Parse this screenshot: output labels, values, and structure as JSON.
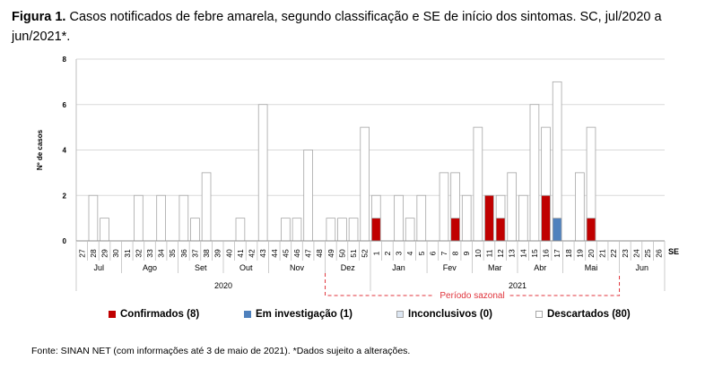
{
  "title": {
    "label": "Figura 1.",
    "text": "Casos notificados de febre amarela, segundo classificação e SE de início dos sintomas. SC, jul/2020 a jun/2021*."
  },
  "footer": {
    "source": "Fonte: SINAN NET (com informações até 3 de maio de 2021). *Dados sujeito a alterações."
  },
  "colors": {
    "confirmados": "#c00000",
    "investigacao": "#4f81bd",
    "inconclusivos": "#dce6f2",
    "descartados": "#ffffff",
    "bar_border": "#a6a6a6",
    "sazonal": "#e0343c"
  },
  "chart_data": {
    "type": "bar",
    "stacked": true,
    "ylabel": "Nº de casos",
    "ylim": [
      0,
      8
    ],
    "yticks": [
      "0",
      "2",
      "4",
      "6",
      "8"
    ],
    "xlabel": "SE",
    "categories": [
      "27",
      "28",
      "29",
      "30",
      "31",
      "32",
      "33",
      "34",
      "35",
      "36",
      "37",
      "38",
      "39",
      "40",
      "41",
      "42",
      "43",
      "44",
      "45",
      "46",
      "47",
      "48",
      "49",
      "50",
      "51",
      "52",
      "1",
      "2",
      "3",
      "4",
      "5",
      "6",
      "7",
      "8",
      "9",
      "10",
      "11",
      "12",
      "13",
      "14",
      "15",
      "16",
      "17",
      "18",
      "19",
      "20",
      "21",
      "22",
      "23",
      "24",
      "25",
      "26"
    ],
    "series": [
      {
        "name": "Confirmados (8)",
        "color_key": "confirmados",
        "values": [
          0,
          0,
          0,
          0,
          0,
          0,
          0,
          0,
          0,
          0,
          0,
          0,
          0,
          0,
          0,
          0,
          0,
          0,
          0,
          0,
          0,
          0,
          0,
          0,
          0,
          0,
          1,
          0,
          0,
          0,
          0,
          0,
          0,
          1,
          0,
          0,
          2,
          1,
          0,
          0,
          0,
          2,
          0,
          0,
          0,
          1,
          0,
          0,
          0,
          0,
          0,
          0
        ]
      },
      {
        "name": "Em investigação (1)",
        "color_key": "investigacao",
        "values": [
          0,
          0,
          0,
          0,
          0,
          0,
          0,
          0,
          0,
          0,
          0,
          0,
          0,
          0,
          0,
          0,
          0,
          0,
          0,
          0,
          0,
          0,
          0,
          0,
          0,
          0,
          0,
          0,
          0,
          0,
          0,
          0,
          0,
          0,
          0,
          0,
          0,
          0,
          0,
          0,
          0,
          0,
          1,
          0,
          0,
          0,
          0,
          0,
          0,
          0,
          0,
          0
        ]
      },
      {
        "name": "Inconclusivos (0)",
        "color_key": "inconclusivos",
        "values": [
          0,
          0,
          0,
          0,
          0,
          0,
          0,
          0,
          0,
          0,
          0,
          0,
          0,
          0,
          0,
          0,
          0,
          0,
          0,
          0,
          0,
          0,
          0,
          0,
          0,
          0,
          0,
          0,
          0,
          0,
          0,
          0,
          0,
          0,
          0,
          0,
          0,
          0,
          0,
          0,
          0,
          0,
          0,
          0,
          0,
          0,
          0,
          0,
          0,
          0,
          0,
          0
        ]
      },
      {
        "name": "Descartados (80)",
        "color_key": "descartados",
        "values": [
          0,
          2,
          1,
          0,
          0,
          2,
          0,
          2,
          0,
          2,
          1,
          3,
          0,
          0,
          1,
          0,
          6,
          0,
          1,
          1,
          4,
          0,
          1,
          1,
          1,
          5,
          1,
          0,
          2,
          1,
          2,
          0,
          3,
          2,
          2,
          5,
          0,
          1,
          3,
          2,
          6,
          3,
          6,
          0,
          3,
          4,
          0,
          0,
          0,
          0,
          0,
          0
        ]
      }
    ],
    "months": [
      {
        "label": "Jul",
        "first": 0,
        "last": 3
      },
      {
        "label": "Ago",
        "first": 4,
        "last": 8
      },
      {
        "label": "Set",
        "first": 9,
        "last": 12
      },
      {
        "label": "Out",
        "first": 13,
        "last": 16
      },
      {
        "label": "Nov",
        "first": 17,
        "last": 21
      },
      {
        "label": "Dez",
        "first": 22,
        "last": 25
      },
      {
        "label": "Jan",
        "first": 26,
        "last": 30
      },
      {
        "label": "Fev",
        "first": 31,
        "last": 34
      },
      {
        "label": "Mar",
        "first": 35,
        "last": 38
      },
      {
        "label": "Abr",
        "first": 39,
        "last": 42
      },
      {
        "label": "Mai",
        "first": 43,
        "last": 47
      },
      {
        "label": "Jun",
        "first": 48,
        "last": 51
      }
    ],
    "years": [
      {
        "label": "2020",
        "first": 0,
        "last": 25
      },
      {
        "label": "2021",
        "first": 26,
        "last": 51
      }
    ],
    "annotation": {
      "label": "Período sazonal",
      "first": 22,
      "last": 47
    },
    "grid": true,
    "legend_position": "bottom"
  }
}
